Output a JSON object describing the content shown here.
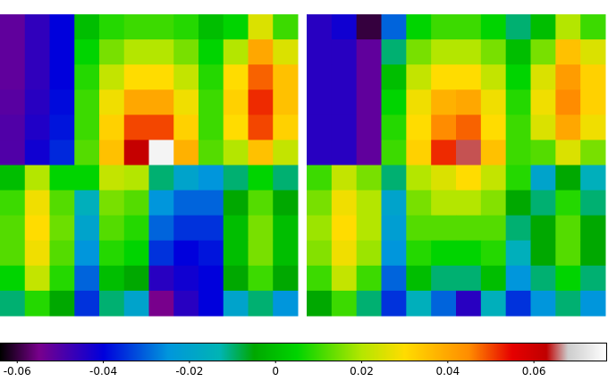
{
  "chart_data": {
    "type": "heatmap",
    "colormap": [
      [
        -0.064,
        "#000000"
      ],
      [
        -0.055,
        "#78008c"
      ],
      [
        -0.04,
        "#0000dc"
      ],
      [
        -0.025,
        "#0096dc"
      ],
      [
        -0.013,
        "#00b4b4"
      ],
      [
        -0.005,
        "#00a800"
      ],
      [
        0.005,
        "#00d400"
      ],
      [
        0.02,
        "#b4e600"
      ],
      [
        0.03,
        "#ffdc00"
      ],
      [
        0.045,
        "#ff8c00"
      ],
      [
        0.055,
        "#e60000"
      ],
      [
        0.063,
        "#c00000"
      ],
      [
        0.068,
        "#cccccc"
      ],
      [
        0.077,
        "#ffffff"
      ]
    ],
    "panels": [
      {
        "z": [
          [
            -0.052,
            -0.046,
            -0.04,
            0.0,
            0.008,
            0.01,
            0.01,
            0.008,
            0.0,
            0.005,
            0.025,
            0.01
          ],
          [
            -0.052,
            -0.046,
            -0.04,
            0.005,
            0.015,
            0.02,
            0.02,
            0.015,
            0.005,
            0.02,
            0.04,
            0.025
          ],
          [
            -0.052,
            -0.046,
            -0.04,
            0.008,
            0.022,
            0.03,
            0.03,
            0.022,
            0.008,
            0.03,
            0.048,
            0.035
          ],
          [
            -0.051,
            -0.045,
            -0.039,
            0.01,
            0.028,
            0.04,
            0.04,
            0.028,
            0.01,
            0.032,
            0.052,
            0.035
          ],
          [
            -0.05,
            -0.044,
            -0.038,
            0.01,
            0.032,
            0.05,
            0.05,
            0.032,
            0.01,
            0.03,
            0.05,
            0.032
          ],
          [
            -0.05,
            -0.042,
            -0.036,
            0.012,
            0.035,
            0.062,
            0.075,
            0.038,
            0.012,
            0.02,
            0.035,
            0.022
          ],
          [
            0.0,
            0.02,
            0.005,
            0.005,
            0.022,
            0.02,
            -0.01,
            -0.02,
            -0.025,
            -0.01,
            0.005,
            -0.01
          ],
          [
            0.01,
            0.028,
            0.012,
            -0.015,
            0.015,
            0.012,
            -0.025,
            -0.03,
            -0.03,
            -0.005,
            0.012,
            -0.005
          ],
          [
            0.012,
            0.03,
            0.014,
            -0.02,
            0.012,
            0.008,
            -0.03,
            -0.035,
            -0.035,
            0.0,
            0.015,
            0.0
          ],
          [
            0.012,
            0.028,
            0.012,
            -0.025,
            0.008,
            0.005,
            -0.035,
            -0.04,
            -0.038,
            0.0,
            0.015,
            0.0
          ],
          [
            0.005,
            0.022,
            0.008,
            -0.03,
            0.0,
            -0.005,
            -0.045,
            -0.042,
            -0.04,
            -0.005,
            0.01,
            -0.005
          ],
          [
            -0.01,
            0.008,
            -0.005,
            -0.035,
            -0.01,
            -0.02,
            -0.055,
            -0.045,
            -0.04,
            -0.02,
            -0.01,
            -0.025
          ]
        ]
      },
      {
        "z": [
          [
            -0.045,
            -0.042,
            -0.06,
            -0.03,
            0.005,
            0.01,
            0.01,
            0.005,
            -0.01,
            0.0,
            0.02,
            0.01
          ],
          [
            -0.045,
            -0.045,
            -0.052,
            -0.01,
            0.015,
            0.02,
            0.02,
            0.015,
            0.0,
            0.015,
            0.035,
            0.025
          ],
          [
            -0.045,
            -0.045,
            -0.052,
            0.0,
            0.022,
            0.03,
            0.03,
            0.022,
            0.005,
            0.025,
            0.042,
            0.032
          ],
          [
            -0.045,
            -0.045,
            -0.052,
            0.005,
            0.028,
            0.038,
            0.04,
            0.028,
            0.008,
            0.028,
            0.045,
            0.032
          ],
          [
            -0.045,
            -0.045,
            -0.052,
            0.008,
            0.03,
            0.045,
            0.048,
            0.03,
            0.01,
            0.025,
            0.04,
            0.028
          ],
          [
            -0.045,
            -0.045,
            -0.052,
            0.01,
            0.032,
            0.052,
            0.065,
            0.035,
            0.01,
            0.012,
            0.025,
            0.015
          ],
          [
            0.01,
            0.022,
            0.015,
            -0.01,
            0.02,
            0.025,
            0.03,
            0.022,
            0.008,
            -0.02,
            -0.005,
            -0.015
          ],
          [
            0.015,
            0.028,
            0.02,
            -0.02,
            0.015,
            0.02,
            0.02,
            0.016,
            -0.005,
            -0.01,
            0.008,
            -0.01
          ],
          [
            0.018,
            0.03,
            0.02,
            -0.022,
            0.012,
            0.012,
            0.012,
            0.012,
            -0.01,
            -0.005,
            0.012,
            -0.005
          ],
          [
            0.016,
            0.028,
            0.018,
            -0.025,
            0.008,
            0.005,
            0.005,
            0.008,
            -0.015,
            -0.005,
            0.012,
            -0.005
          ],
          [
            0.01,
            0.022,
            0.01,
            -0.03,
            0.0,
            -0.01,
            -0.01,
            0.0,
            -0.025,
            -0.01,
            0.005,
            -0.01
          ],
          [
            -0.005,
            0.01,
            -0.01,
            -0.035,
            -0.015,
            -0.03,
            -0.045,
            -0.015,
            -0.035,
            -0.025,
            -0.01,
            -0.025
          ]
        ]
      }
    ],
    "clim": [
      -0.064,
      0.077
    ],
    "ticks": [
      -0.06,
      -0.04,
      -0.02,
      0,
      0.02,
      0.04,
      0.06
    ]
  }
}
